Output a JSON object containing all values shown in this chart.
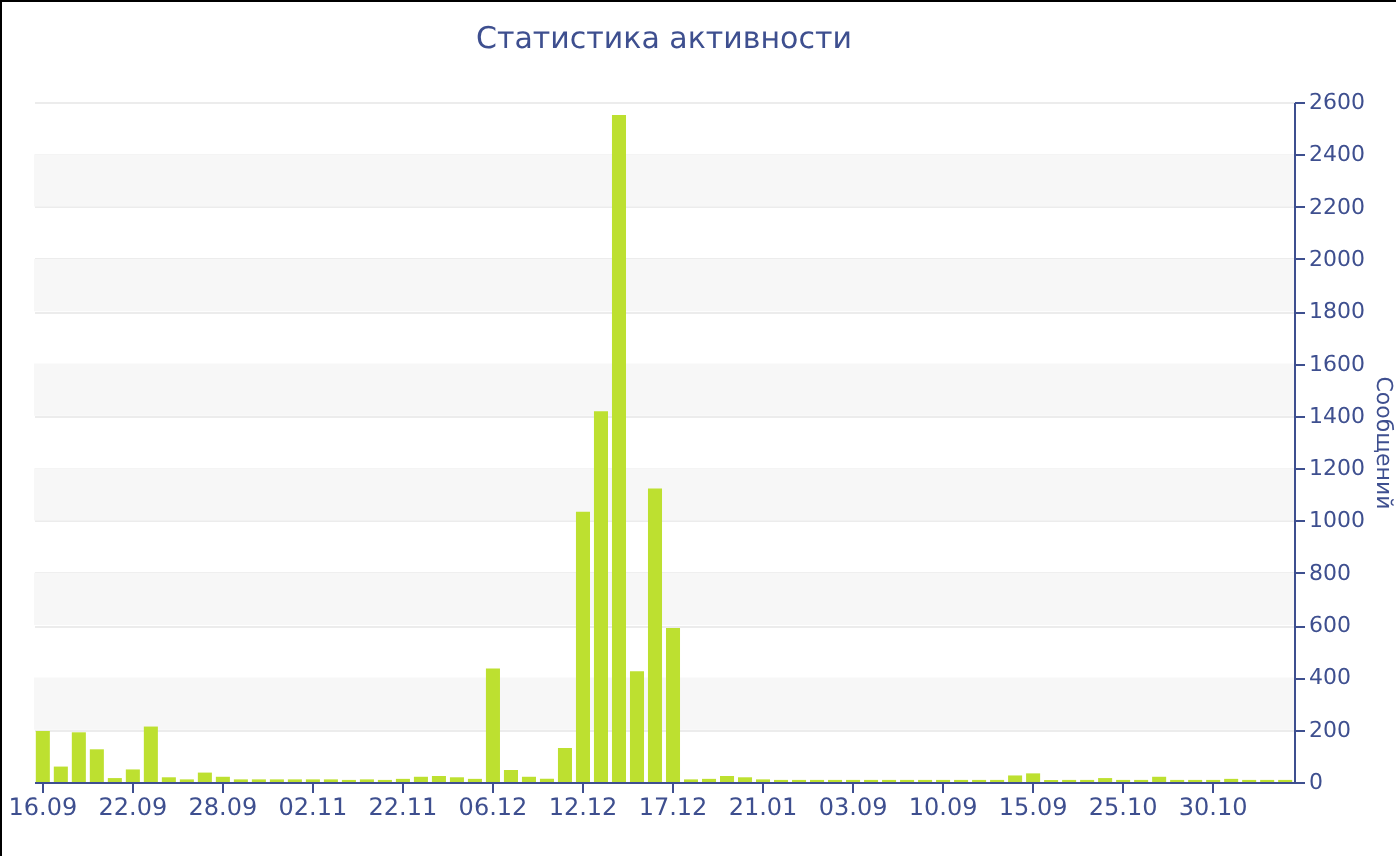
{
  "chart_data": {
    "type": "bar",
    "title": "Статистика активности",
    "ylabel": "Сообщений",
    "categories": [
      "16.09",
      null,
      null,
      null,
      null,
      "22.09",
      null,
      null,
      null,
      null,
      "28.09",
      null,
      null,
      null,
      null,
      "02.11",
      null,
      null,
      null,
      null,
      "22.11",
      null,
      null,
      null,
      null,
      "06.12",
      null,
      null,
      null,
      null,
      "12.12",
      null,
      null,
      null,
      null,
      "17.12",
      null,
      null,
      null,
      null,
      "21.01",
      null,
      null,
      null,
      null,
      "03.09",
      null,
      null,
      null,
      null,
      "10.09",
      null,
      null,
      null,
      null,
      "15.09",
      null,
      null,
      null,
      null,
      "25.10",
      null,
      null,
      null,
      null,
      "30.10",
      null,
      null,
      null,
      null
    ],
    "values": [
      195,
      59,
      190,
      125,
      15,
      48,
      212,
      18,
      10,
      36,
      20,
      10,
      10,
      10,
      10,
      10,
      10,
      8,
      10,
      8,
      12,
      20,
      23,
      18,
      12,
      434,
      46,
      20,
      12,
      130,
      1033,
      1418,
      2550,
      423,
      1122,
      589,
      10,
      12,
      23,
      18,
      10,
      8,
      8,
      8,
      8,
      8,
      8,
      8,
      8,
      8,
      8,
      8,
      8,
      8,
      25,
      33,
      8,
      8,
      8,
      15,
      8,
      8,
      20,
      8,
      8,
      8,
      12,
      8,
      8,
      8
    ],
    "color": "#bde030",
    "ylim": [
      0,
      2600
    ],
    "yticks": [
      0,
      200,
      400,
      600,
      800,
      1000,
      1200,
      1400,
      1600,
      1800,
      2000,
      2200,
      2400,
      2600
    ],
    "grid": "y"
  }
}
